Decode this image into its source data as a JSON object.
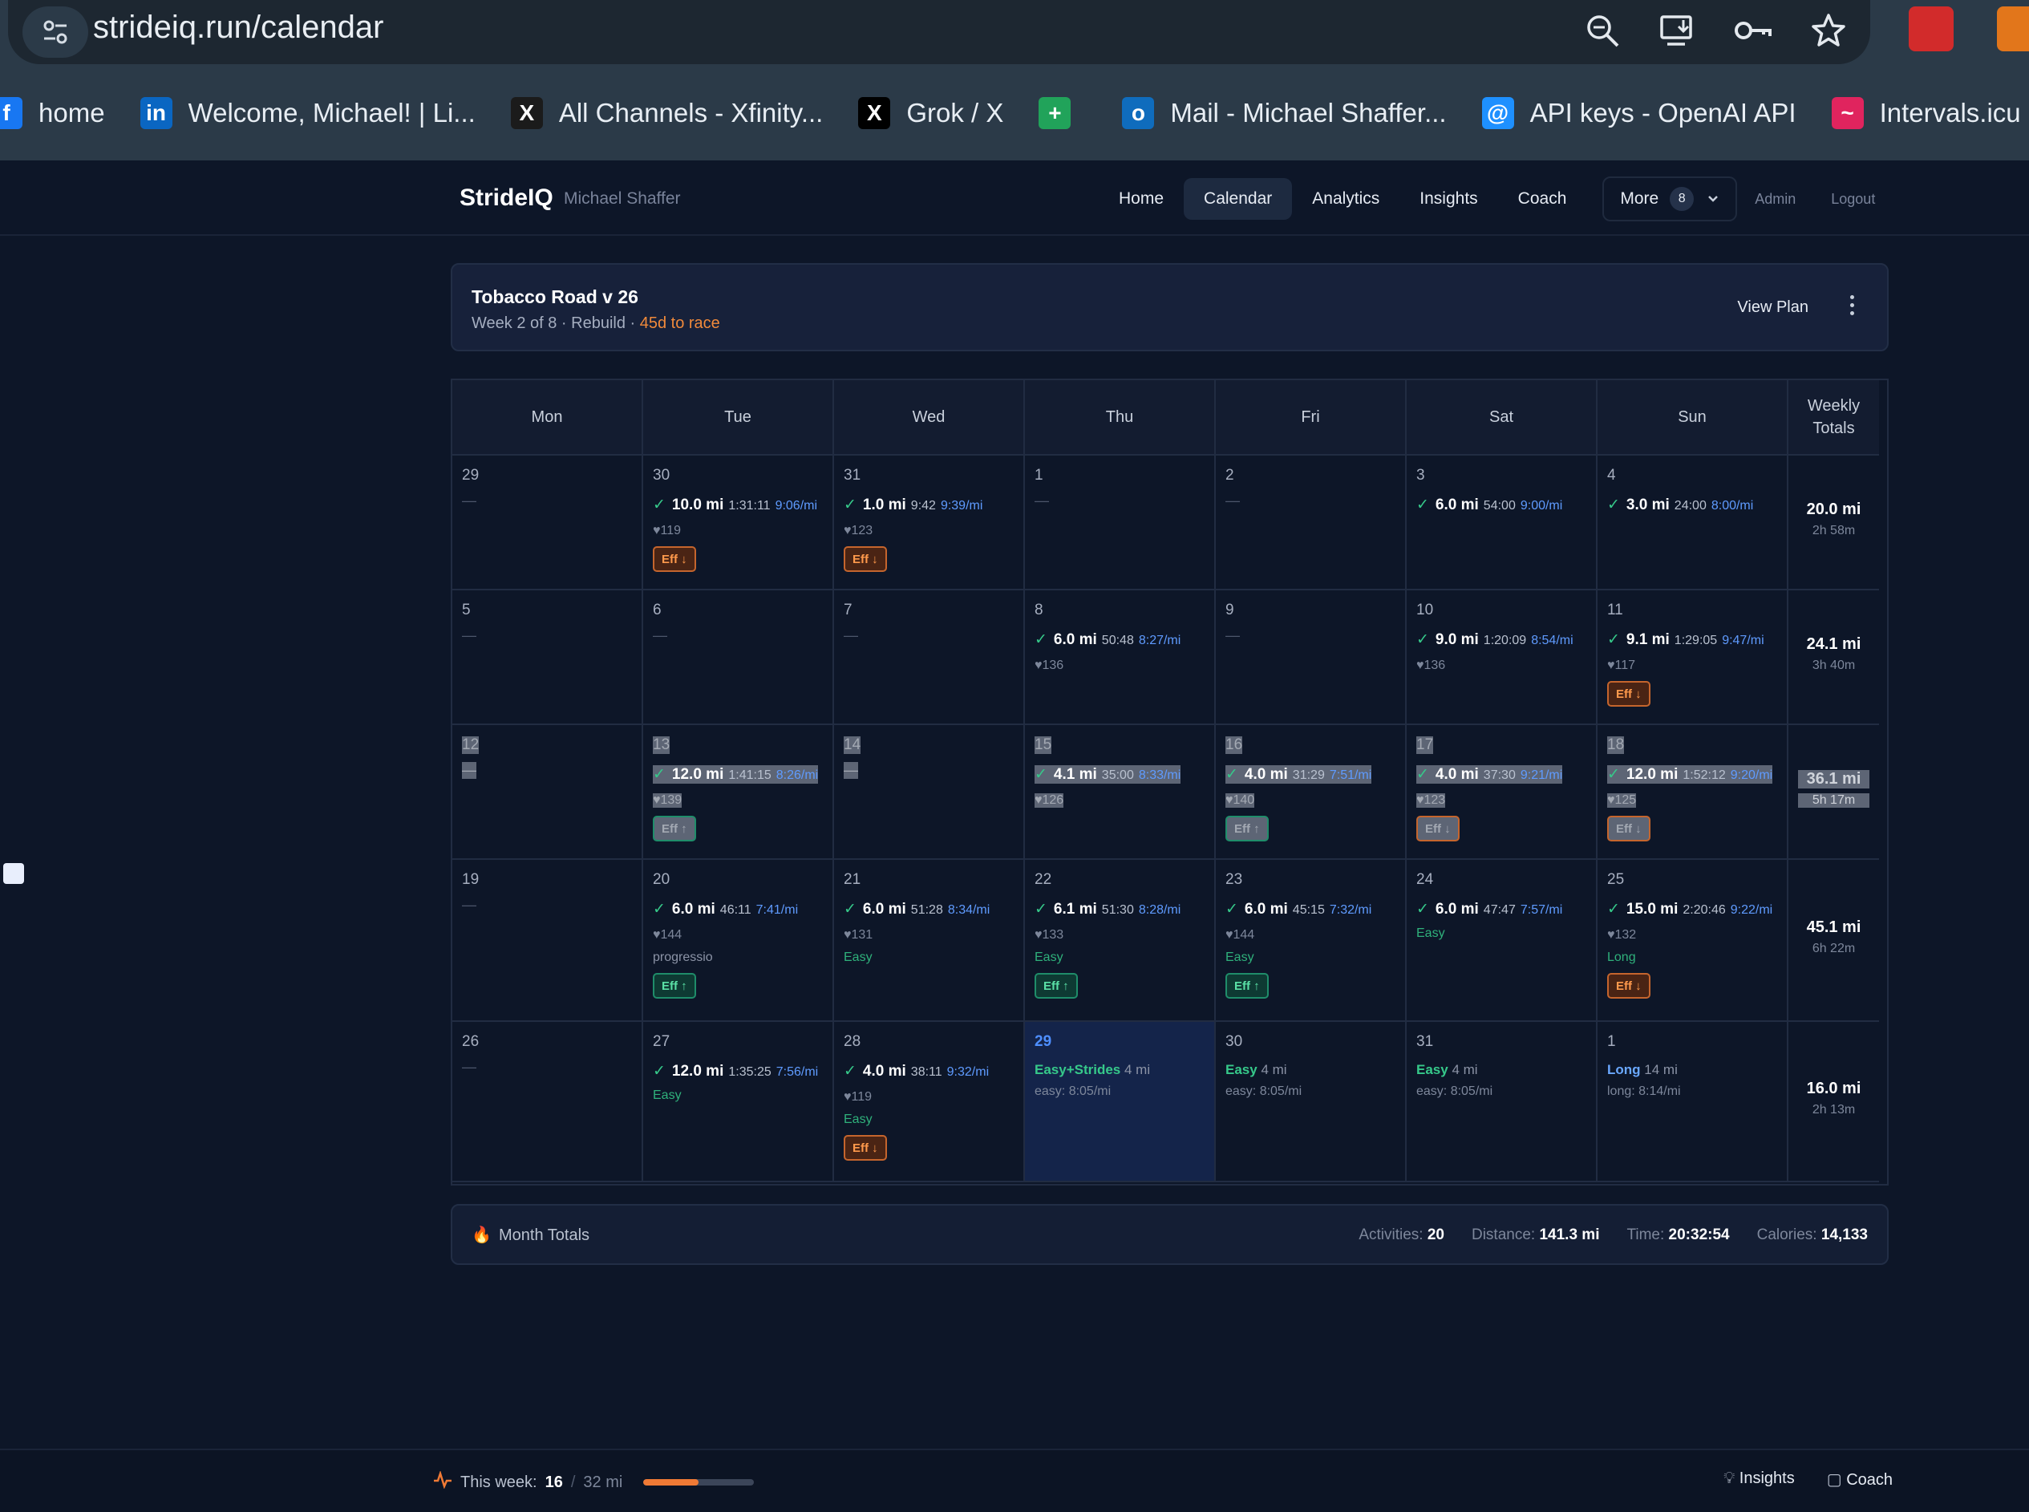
{
  "browser": {
    "url": "strideiq.run/calendar",
    "bookmarks": [
      {
        "label": "home",
        "icon": "facebook-icon",
        "color": "#1877f2",
        "glyph": "f"
      },
      {
        "label": "Welcome, Michael! | Li...",
        "icon": "linkedin-icon",
        "color": "#0a66c2",
        "glyph": "in"
      },
      {
        "label": "All Channels - Xfinity...",
        "icon": "x-icon",
        "color": "#1b1b1b",
        "glyph": "X"
      },
      {
        "label": "Grok / X",
        "icon": "x-icon",
        "color": "#000000",
        "glyph": "X"
      },
      {
        "label": "",
        "icon": "sheets-icon",
        "color": "#21a35a",
        "glyph": "+"
      },
      {
        "label": "Mail - Michael Shaffer...",
        "icon": "outlook-icon",
        "color": "#0f6cbd",
        "glyph": "o"
      },
      {
        "label": "API keys - OpenAI API",
        "icon": "openai-icon",
        "color": "#1e90ff",
        "glyph": "@"
      },
      {
        "label": "Intervals.icu",
        "icon": "intervals-icon",
        "color": "#e0245e",
        "glyph": "~"
      }
    ]
  },
  "header": {
    "brand": "StrideIQ",
    "user": "Michael Shaffer",
    "nav": [
      "Home",
      "Calendar",
      "Analytics",
      "Insights",
      "Coach"
    ],
    "active": "Calendar",
    "more_label": "More",
    "more_count": "8",
    "admin": "Admin",
    "logout": "Logout"
  },
  "plan": {
    "title": "Tobacco Road v 26",
    "subtitle": "Week 2 of 8 · Rebuild · ",
    "race": "45d to race",
    "view_plan": "View Plan"
  },
  "calendar": {
    "days": [
      "Mon",
      "Tue",
      "Wed",
      "Thu",
      "Fri",
      "Sat",
      "Sun"
    ],
    "weekly_header": "Weekly Totals",
    "weeks": [
      {
        "cells": [
          {
            "d": "29"
          },
          {
            "d": "30",
            "dist": "10.0 mi",
            "time": "1:31:11",
            "pace": "9:06/mi",
            "hr": "♥119",
            "eff": "down"
          },
          {
            "d": "31",
            "dist": "1.0 mi",
            "time": "9:42",
            "pace": "9:39/mi",
            "hr": "♥123",
            "eff": "down"
          },
          {
            "d": "1"
          },
          {
            "d": "2"
          },
          {
            "d": "3",
            "dist": "6.0 mi",
            "time": "54:00",
            "pace": "9:00/mi"
          },
          {
            "d": "4",
            "dist": "3.0 mi",
            "time": "24:00",
            "pace": "8:00/mi"
          }
        ],
        "total": {
          "dist": "20.0 mi",
          "time": "2h 58m"
        }
      },
      {
        "cells": [
          {
            "d": "5"
          },
          {
            "d": "6"
          },
          {
            "d": "7"
          },
          {
            "d": "8",
            "dist": "6.0 mi",
            "time": "50:48",
            "pace": "8:27/mi",
            "hr": "♥136"
          },
          {
            "d": "9"
          },
          {
            "d": "10",
            "dist": "9.0 mi",
            "time": "1:20:09",
            "pace": "8:54/mi",
            "hr": "♥136"
          },
          {
            "d": "11",
            "dist": "9.1 mi",
            "time": "1:29:05",
            "pace": "9:47/mi",
            "hr": "♥117",
            "eff": "down"
          }
        ],
        "total": {
          "dist": "24.1 mi",
          "time": "3h 40m"
        }
      },
      {
        "dim": true,
        "cells": [
          {
            "d": "12",
            "dash_dim": true
          },
          {
            "d": "13",
            "dist": "12.0 mi",
            "time": "1:41:15",
            "pace": "8:26/mi",
            "hr": "♥139",
            "eff": "up"
          },
          {
            "d": "14",
            "dash_dim": true
          },
          {
            "d": "15",
            "dist": "4.1 mi",
            "time": "35:00",
            "pace": "8:33/mi",
            "hr": "♥126"
          },
          {
            "d": "16",
            "dist": "4.0 mi",
            "time": "31:29",
            "pace": "7:51/mi",
            "hr": "♥140",
            "eff": "up"
          },
          {
            "d": "17",
            "dist": "4.0 mi",
            "time": "37:30",
            "pace": "9:21/mi",
            "hr": "♥123",
            "eff": "down"
          },
          {
            "d": "18",
            "dist": "12.0 mi",
            "time": "1:52:12",
            "pace": "9:20/mi",
            "hr": "♥125",
            "eff": "down"
          }
        ],
        "total": {
          "dist": "36.1 mi",
          "time": "5h 17m"
        }
      },
      {
        "cells": [
          {
            "d": "19"
          },
          {
            "d": "20",
            "dist": "6.0 mi",
            "time": "46:11",
            "pace": "7:41/mi",
            "hr": "♥144",
            "tag": "progressio",
            "tag_muted": true,
            "eff": "up"
          },
          {
            "d": "21",
            "dist": "6.0 mi",
            "time": "51:28",
            "pace": "8:34/mi",
            "hr": "♥131",
            "tag": "Easy"
          },
          {
            "d": "22",
            "dist": "6.1 mi",
            "time": "51:30",
            "pace": "8:28/mi",
            "hr": "♥133",
            "tag": "Easy",
            "eff": "up"
          },
          {
            "d": "23",
            "dist": "6.0 mi",
            "time": "45:15",
            "pace": "7:32/mi",
            "hr": "♥144",
            "tag": "Easy",
            "eff": "up"
          },
          {
            "d": "24",
            "dist": "6.0 mi",
            "time": "47:47",
            "pace": "7:57/mi",
            "tag": "Easy"
          },
          {
            "d": "25",
            "dist": "15.0 mi",
            "time": "2:20:46",
            "pace": "9:22/mi",
            "hr": "♥132",
            "tag": "Long",
            "eff": "down"
          }
        ],
        "total": {
          "dist": "45.1 mi",
          "time": "6h 22m"
        }
      },
      {
        "cells": [
          {
            "d": "26"
          },
          {
            "d": "27",
            "dist": "12.0 mi",
            "time": "1:35:25",
            "pace": "7:56/mi",
            "tag": "Easy"
          },
          {
            "d": "28",
            "dist": "4.0 mi",
            "time": "38:11",
            "pace": "9:32/mi",
            "hr": "♥119",
            "tag": "Easy",
            "eff": "down"
          },
          {
            "d": "29",
            "today": true,
            "plan": "Easy+Strides",
            "plan_dist": "4 mi",
            "plan_sub": "easy: 8:05/mi"
          },
          {
            "d": "30",
            "plan": "Easy",
            "plan_dist": "4 mi",
            "plan_sub": "easy: 8:05/mi"
          },
          {
            "d": "31",
            "plan": "Easy",
            "plan_dist": "4 mi",
            "plan_sub": "easy: 8:05/mi"
          },
          {
            "d": "1",
            "plan": "Long",
            "plan_blue": true,
            "plan_dist": "14 mi",
            "plan_sub": "long: 8:14/mi"
          }
        ],
        "total": {
          "dist": "16.0 mi",
          "time": "2h 13m"
        }
      }
    ],
    "eff_up": "Eff ↑",
    "eff_down": "Eff ↓"
  },
  "month_totals": {
    "label": "Month Totals",
    "activities_label": "Activities:",
    "activities": "20",
    "distance_label": "Distance:",
    "distance": "141.3 mi",
    "time_label": "Time:",
    "time": "20:32:54",
    "calories_label": "Calories:",
    "calories": "14,133"
  },
  "footer": {
    "week_label": "This week:",
    "week_value": "16",
    "week_goal": "32 mi",
    "progress_fraction": 0.5,
    "insights": "Insights",
    "coach": "Coach"
  }
}
